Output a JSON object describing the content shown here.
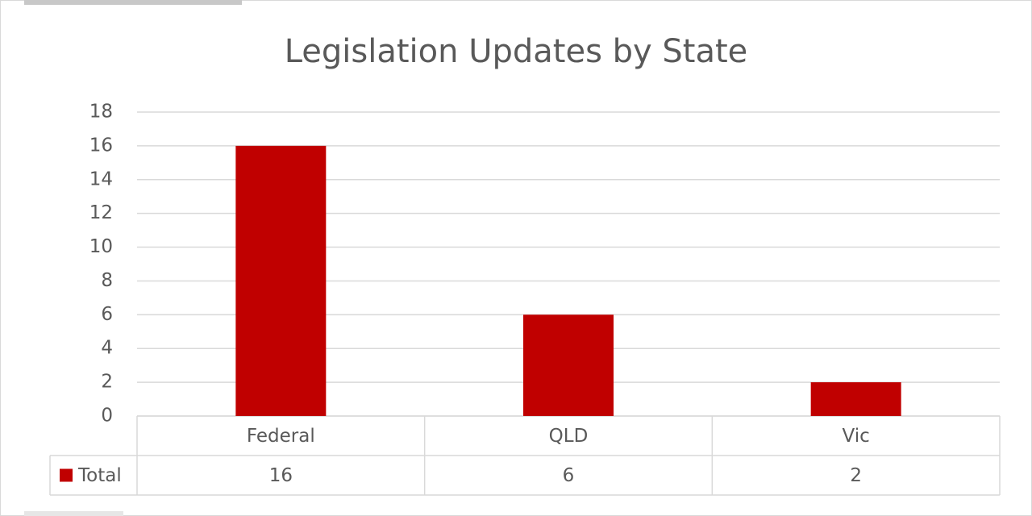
{
  "chart_data": {
    "type": "bar",
    "title": "Legislation Updates by State",
    "categories": [
      "Federal",
      "QLD",
      "Vic"
    ],
    "series": [
      {
        "name": "Total",
        "color": "#c00000",
        "values": [
          16,
          6,
          2
        ]
      }
    ],
    "ylim": [
      0,
      18
    ],
    "yticks": [
      0,
      2,
      4,
      6,
      8,
      10,
      12,
      14,
      16,
      18
    ],
    "grid": true,
    "data_table": true
  }
}
